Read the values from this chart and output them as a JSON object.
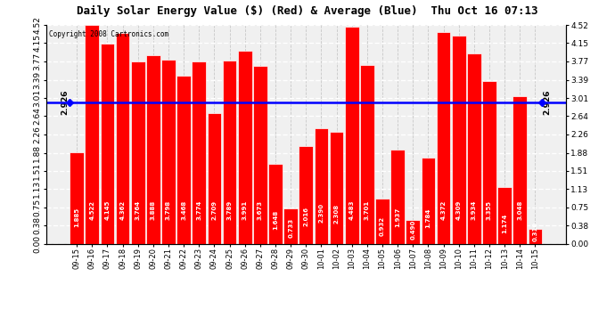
{
  "title": "Daily Solar Energy Value ($) (Red) & Average (Blue)  Thu Oct 16 07:13",
  "copyright": "Copyright 2008 Cartronics.com",
  "average": 2.926,
  "bar_color": "#ff0000",
  "avg_line_color": "#0000ff",
  "background_color": "#ffffff",
  "plot_bg_color": "#ffffff",
  "ylim": [
    0.0,
    4.52
  ],
  "yticks": [
    0.0,
    0.38,
    0.75,
    1.13,
    1.51,
    1.88,
    2.26,
    2.64,
    3.01,
    3.39,
    3.77,
    4.15,
    4.52
  ],
  "categories": [
    "09-15",
    "09-16",
    "09-17",
    "09-18",
    "09-19",
    "09-20",
    "09-21",
    "09-22",
    "09-23",
    "09-24",
    "09-25",
    "09-26",
    "09-27",
    "09-28",
    "09-29",
    "09-30",
    "10-01",
    "10-02",
    "10-03",
    "10-04",
    "10-05",
    "10-06",
    "10-07",
    "10-08",
    "10-09",
    "10-10",
    "10-11",
    "10-12",
    "10-13",
    "10-14",
    "10-15"
  ],
  "values": [
    1.885,
    4.522,
    4.145,
    4.362,
    3.764,
    3.888,
    3.798,
    3.468,
    3.774,
    2.709,
    3.789,
    3.991,
    3.673,
    1.648,
    0.733,
    2.016,
    2.39,
    2.308,
    4.483,
    3.701,
    0.932,
    1.937,
    0.49,
    1.784,
    4.372,
    4.309,
    3.934,
    3.355,
    1.174,
    3.048,
    0.31
  ],
  "avg_label": "2.926",
  "grid_color": "#c8c8c8",
  "grid_linestyle": "--"
}
